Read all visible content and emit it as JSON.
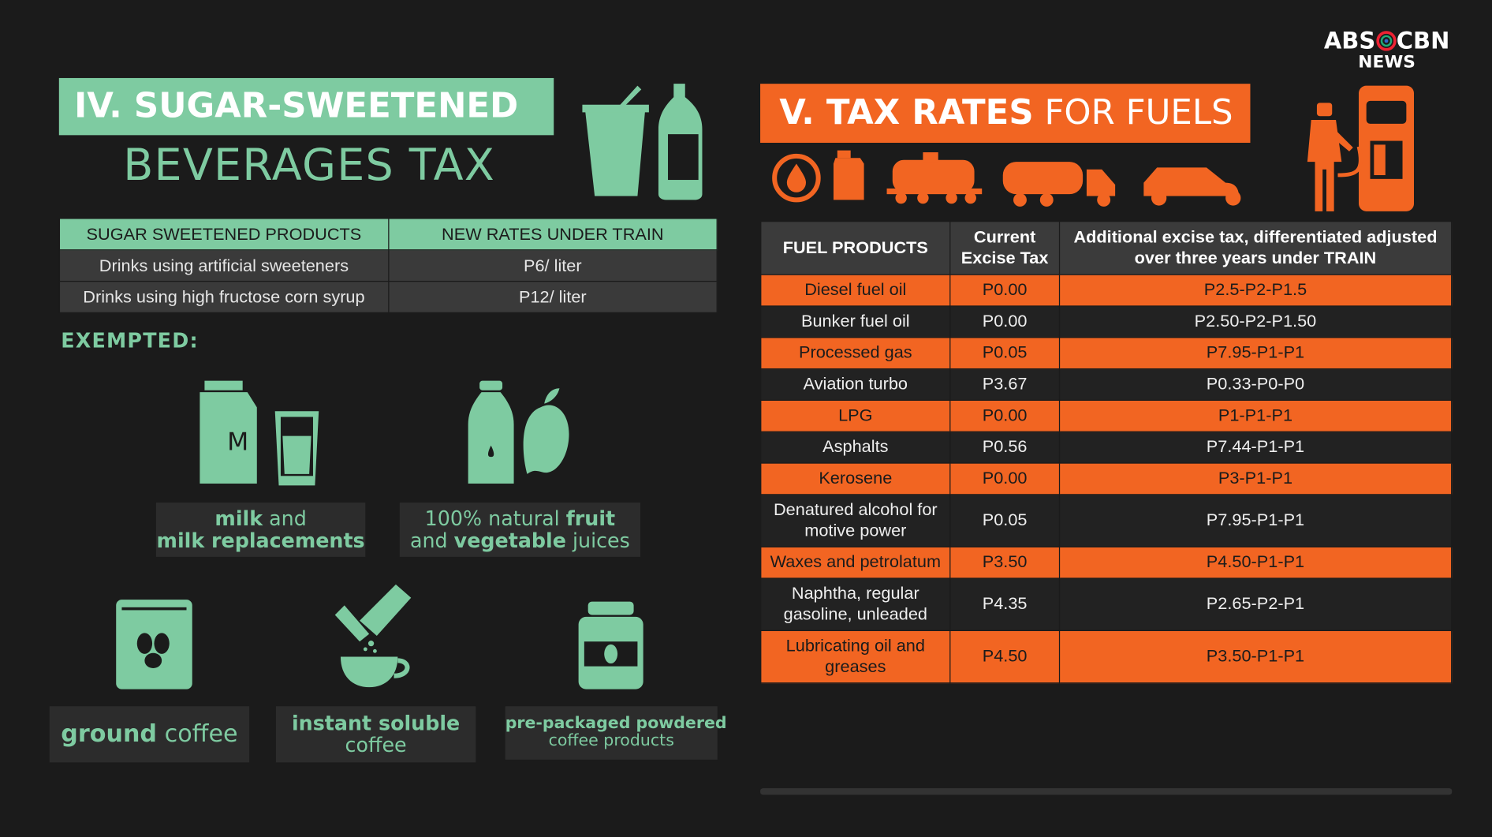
{
  "logo": {
    "left": "ABS",
    "right": "CBN",
    "bottom": "NEWS"
  },
  "sugar_section": {
    "title_line1": "IV. SUGAR-SWEETENED",
    "title_line2": "BEVERAGES TAX",
    "table": {
      "header": [
        "SUGAR SWEETENED PRODUCTS",
        "NEW RATES UNDER TRAIN"
      ],
      "rows": [
        [
          "Drinks using artificial sweeteners",
          "P6/ liter"
        ],
        [
          "Drinks using high fructose corn syrup",
          "P12/ liter"
        ]
      ]
    },
    "exempted_label": "EXEMPTED:",
    "exempted_items": [
      {
        "lines": [
          [
            {
              "text": "milk",
              "bold": true
            },
            {
              "text": " and",
              "bold": false
            }
          ],
          [
            {
              "text": "milk replacements",
              "bold": true
            }
          ]
        ]
      },
      {
        "lines": [
          [
            {
              "text": "100% natural ",
              "bold": false
            },
            {
              "text": "fruit",
              "bold": true
            }
          ],
          [
            {
              "text": "and ",
              "bold": false
            },
            {
              "text": "vegetable",
              "bold": true
            },
            {
              "text": " juices",
              "bold": false
            }
          ]
        ]
      },
      {
        "lines": [
          [
            {
              "text": "ground",
              "bold": true
            },
            {
              "text": " coffee",
              "bold": false
            }
          ]
        ]
      },
      {
        "lines": [
          [
            {
              "text": "instant soluble",
              "bold": true
            }
          ],
          [
            {
              "text": "coffee",
              "bold": false
            }
          ]
        ]
      },
      {
        "lines": [
          [
            {
              "text": "pre-packaged powdered",
              "bold": true
            }
          ],
          [
            {
              "text": "coffee products",
              "bold": false
            }
          ]
        ]
      }
    ]
  },
  "fuel_section": {
    "title_bold": "V. TAX RATES",
    "title_light": "FOR FUELS",
    "table": {
      "header": [
        "FUEL PRODUCTS",
        "Current Excise Tax",
        "Additional excise tax, differentiated adjusted over three years under TRAIN"
      ],
      "rows": [
        [
          "Diesel fuel oil",
          "P0.00",
          "P2.5-P2-P1.5"
        ],
        [
          "Bunker fuel oil",
          "P0.00",
          "P2.50-P2-P1.50"
        ],
        [
          "Processed gas",
          "P0.05",
          "P7.95-P1-P1"
        ],
        [
          "Aviation turbo",
          "P3.67",
          "P0.33-P0-P0"
        ],
        [
          "LPG",
          "P0.00",
          "P1-P1-P1"
        ],
        [
          "Asphalts",
          "P0.56",
          "P7.44-P1-P1"
        ],
        [
          "Kerosene",
          "P0.00",
          "P3-P1-P1"
        ],
        [
          "Denatured alcohol for motive power",
          "P0.05",
          "P7.95-P1-P1"
        ],
        [
          "Waxes and petrolatum",
          "P3.50",
          "P4.50-P1-P1"
        ],
        [
          "Naphtha, regular gasoline, unleaded",
          "P4.35",
          "P2.65-P2-P1"
        ],
        [
          "Lubricating oil and greases",
          "P4.50",
          "P3.50-P1-P1"
        ]
      ]
    }
  }
}
